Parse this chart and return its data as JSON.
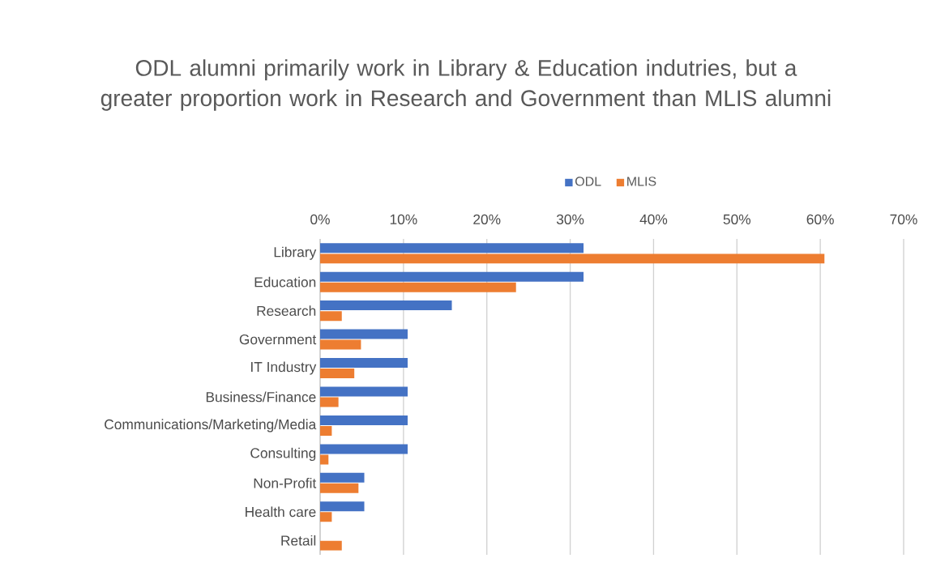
{
  "chart_data": {
    "type": "bar",
    "orientation": "horizontal",
    "title": "ODL alumni primarily work in Library & Education indutries, but a greater proportion work in Research and Government than MLIS alumni",
    "categories": [
      "Library",
      "Education",
      "Research",
      "Government",
      "IT Industry",
      "Business/Finance",
      "Communications/Marketing/Media",
      "Consulting",
      "Non-Profit",
      "Health care",
      "Retail"
    ],
    "series": [
      {
        "name": "ODL",
        "color": "#4472c4",
        "values": [
          31.6,
          31.6,
          15.8,
          10.5,
          10.5,
          10.5,
          10.5,
          10.5,
          5.3,
          5.3,
          0
        ]
      },
      {
        "name": "MLIS",
        "color": "#ed7d31",
        "values": [
          60.5,
          23.5,
          2.6,
          4.9,
          4.1,
          2.2,
          1.4,
          1.0,
          4.6,
          1.4,
          2.6
        ]
      }
    ],
    "xlim": [
      0,
      70
    ],
    "xticks": [
      {
        "value": 0,
        "label": "0%"
      },
      {
        "value": 10,
        "label": "10%"
      },
      {
        "value": 20,
        "label": "20%"
      },
      {
        "value": 30,
        "label": "30%"
      },
      {
        "value": 40,
        "label": "40%"
      },
      {
        "value": 50,
        "label": "50%"
      },
      {
        "value": 60,
        "label": "60%"
      },
      {
        "value": 70,
        "label": "70%"
      }
    ],
    "grid": "x",
    "legend": "top"
  }
}
